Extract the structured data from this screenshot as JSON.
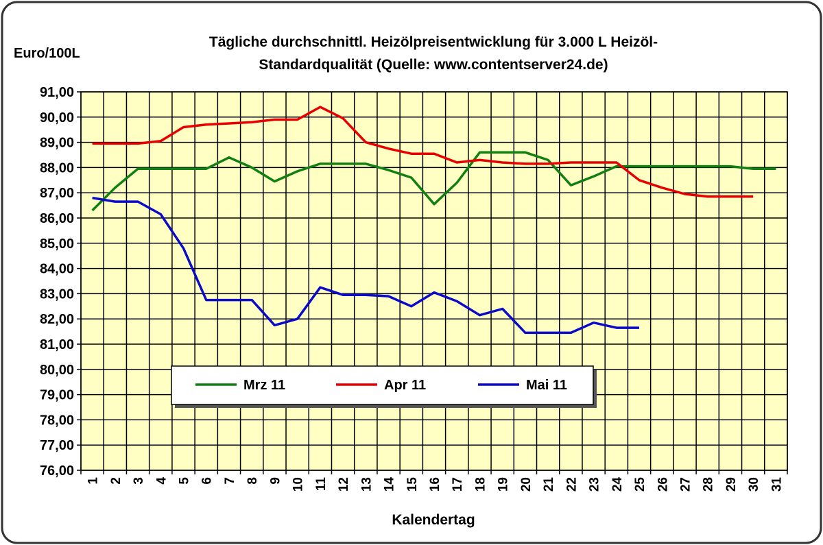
{
  "chart_data": {
    "type": "line",
    "title": [
      "Tägliche durchschnittl. Heizölpreisentwicklung für 3.000 L Heizöl-",
      "Standardqualität (Quelle: www.contentserver24.de)"
    ],
    "y_label": "Euro/100L",
    "x_label": "Kalendertag",
    "categories": [
      "1",
      "2",
      "3",
      "4",
      "5",
      "6",
      "7",
      "8",
      "9",
      "10",
      "11",
      "12",
      "13",
      "14",
      "15",
      "16",
      "17",
      "18",
      "19",
      "20",
      "21",
      "22",
      "23",
      "24",
      "25",
      "26",
      "27",
      "28",
      "29",
      "30",
      "31"
    ],
    "ylim": [
      76,
      91
    ],
    "yticks": [
      {
        "value": 76,
        "label": "76,00"
      },
      {
        "value": 77,
        "label": "77,00"
      },
      {
        "value": 78,
        "label": "78,00"
      },
      {
        "value": 79,
        "label": "79,00"
      },
      {
        "value": 80,
        "label": "80,00"
      },
      {
        "value": 81,
        "label": "81,00"
      },
      {
        "value": 82,
        "label": "82,00"
      },
      {
        "value": 83,
        "label": "83,00"
      },
      {
        "value": 84,
        "label": "84,00"
      },
      {
        "value": 85,
        "label": "85,00"
      },
      {
        "value": 86,
        "label": "86,00"
      },
      {
        "value": 87,
        "label": "87,00"
      },
      {
        "value": 88,
        "label": "88,00"
      },
      {
        "value": 89,
        "label": "89,00"
      },
      {
        "value": 90,
        "label": "90,00"
      },
      {
        "value": 91,
        "label": "91,00"
      }
    ],
    "grid": true,
    "series": [
      {
        "name": "Mrz 11",
        "color": "#108010",
        "values": [
          86.3,
          87.2,
          87.95,
          87.95,
          87.95,
          87.95,
          88.4,
          88.0,
          87.45,
          87.85,
          88.15,
          88.15,
          88.15,
          87.9,
          87.6,
          86.55,
          87.4,
          88.6,
          88.6,
          88.6,
          88.3,
          87.3,
          87.65,
          88.05,
          88.05,
          88.05,
          88.05,
          88.05,
          88.05,
          87.95,
          87.95
        ]
      },
      {
        "name": "Apr 11",
        "color": "#e80000",
        "values": [
          88.95,
          88.95,
          88.95,
          89.05,
          89.6,
          89.7,
          89.75,
          89.8,
          89.9,
          89.9,
          90.4,
          89.95,
          89.0,
          88.75,
          88.55,
          88.55,
          88.2,
          88.3,
          88.2,
          88.15,
          88.15,
          88.2,
          88.2,
          88.2,
          87.5,
          87.2,
          86.95,
          86.85,
          86.85,
          86.85,
          null
        ]
      },
      {
        "name": "Mai 11",
        "color": "#0a0ac8",
        "values": [
          86.8,
          86.65,
          86.65,
          86.15,
          84.8,
          82.75,
          82.75,
          82.75,
          81.75,
          82.0,
          83.25,
          82.95,
          82.95,
          82.9,
          82.5,
          83.05,
          82.7,
          82.15,
          82.4,
          81.45,
          81.45,
          81.45,
          81.85,
          81.65,
          81.65,
          null,
          null,
          null,
          null,
          null,
          null
        ]
      }
    ]
  }
}
